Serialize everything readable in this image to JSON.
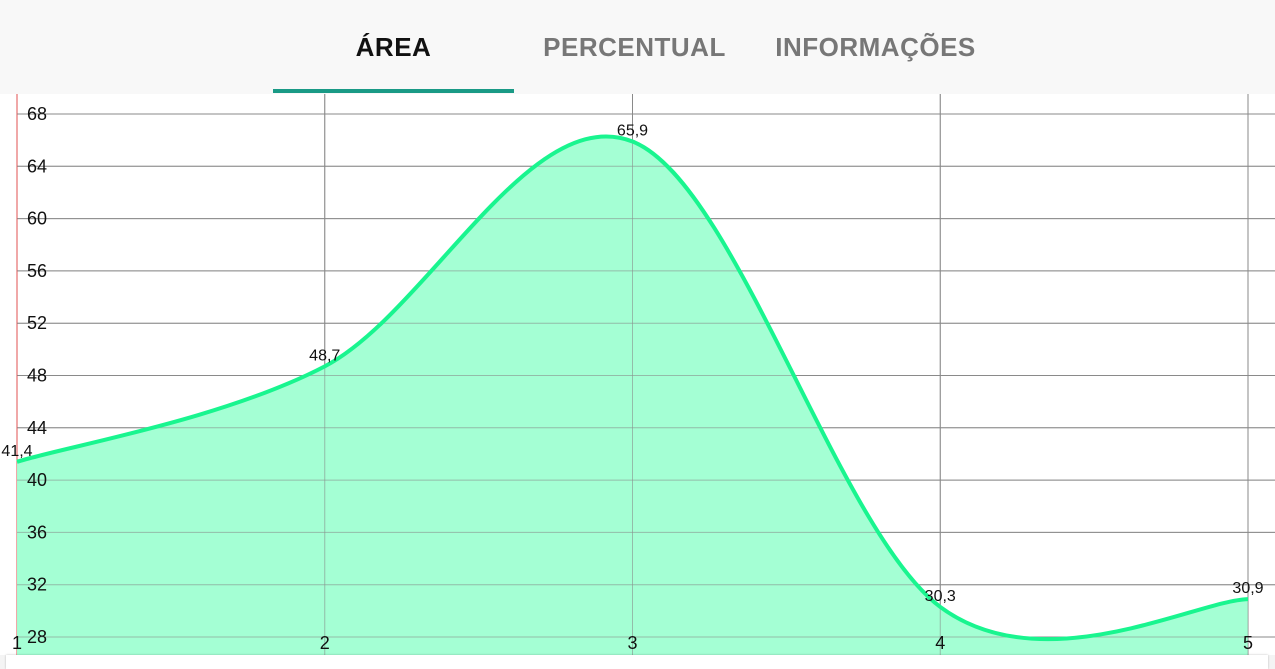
{
  "tabs": [
    {
      "label": "ÁREA",
      "active": true
    },
    {
      "label": "PERCENTUAL",
      "active": false
    },
    {
      "label": "INFORMAÇÕES",
      "active": false
    }
  ],
  "colors": {
    "accent": "#1a9a86",
    "area_fill": "#9fffd2",
    "area_line": "#19f58f",
    "grid": "#8a8a8a",
    "axis_line": "#e05050"
  },
  "chart_data": {
    "type": "area",
    "x": [
      1,
      2,
      3,
      4,
      5
    ],
    "x_tick_labels": [
      "1",
      "2",
      "3",
      "4",
      "5"
    ],
    "values": [
      41.4,
      48.7,
      65.9,
      30.3,
      30.9
    ],
    "data_labels": [
      "41,4",
      "48,7",
      "65,9",
      "30,3",
      "30,9"
    ],
    "y_ticks": [
      28,
      32,
      36,
      40,
      44,
      48,
      52,
      56,
      60,
      64,
      68
    ],
    "ylim": [
      28,
      68
    ],
    "xlim": [
      1,
      5
    ],
    "curve": "smooth",
    "grid": true,
    "legend": "none"
  }
}
